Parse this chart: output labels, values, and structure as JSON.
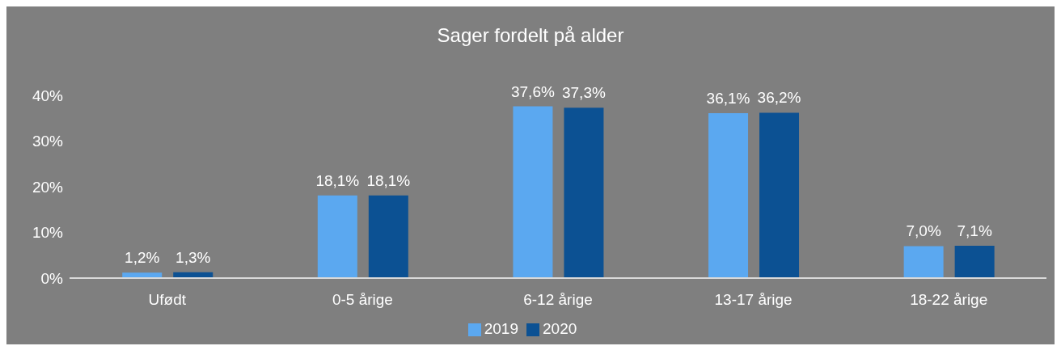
{
  "chart_data": {
    "type": "bar",
    "title": "Sager fordelt på alder",
    "categories": [
      "Ufødt",
      "0-5 årige",
      "6-12 årige",
      "13-17 årige",
      "18-22 årige"
    ],
    "series": [
      {
        "name": "2019",
        "color": "#5ba8f0",
        "values": [
          1.2,
          18.1,
          37.6,
          36.1,
          7.0
        ],
        "value_labels": [
          "1,2%",
          "18,1%",
          "37,6%",
          "36,1%",
          "7,0%"
        ]
      },
      {
        "name": "2020",
        "color": "#0c5193",
        "values": [
          1.3,
          18.1,
          37.3,
          36.2,
          7.1
        ],
        "value_labels": [
          "1,3%",
          "18,1%",
          "37,3%",
          "36,2%",
          "7,1%"
        ]
      }
    ],
    "ylim": [
      0,
      40
    ],
    "yticks": [
      {
        "value": 0,
        "label": "0%"
      },
      {
        "value": 10,
        "label": "10%"
      },
      {
        "value": 20,
        "label": "20%"
      },
      {
        "value": 30,
        "label": "30%"
      },
      {
        "value": 40,
        "label": "40%"
      }
    ],
    "grid": false,
    "legend": "bottom"
  }
}
